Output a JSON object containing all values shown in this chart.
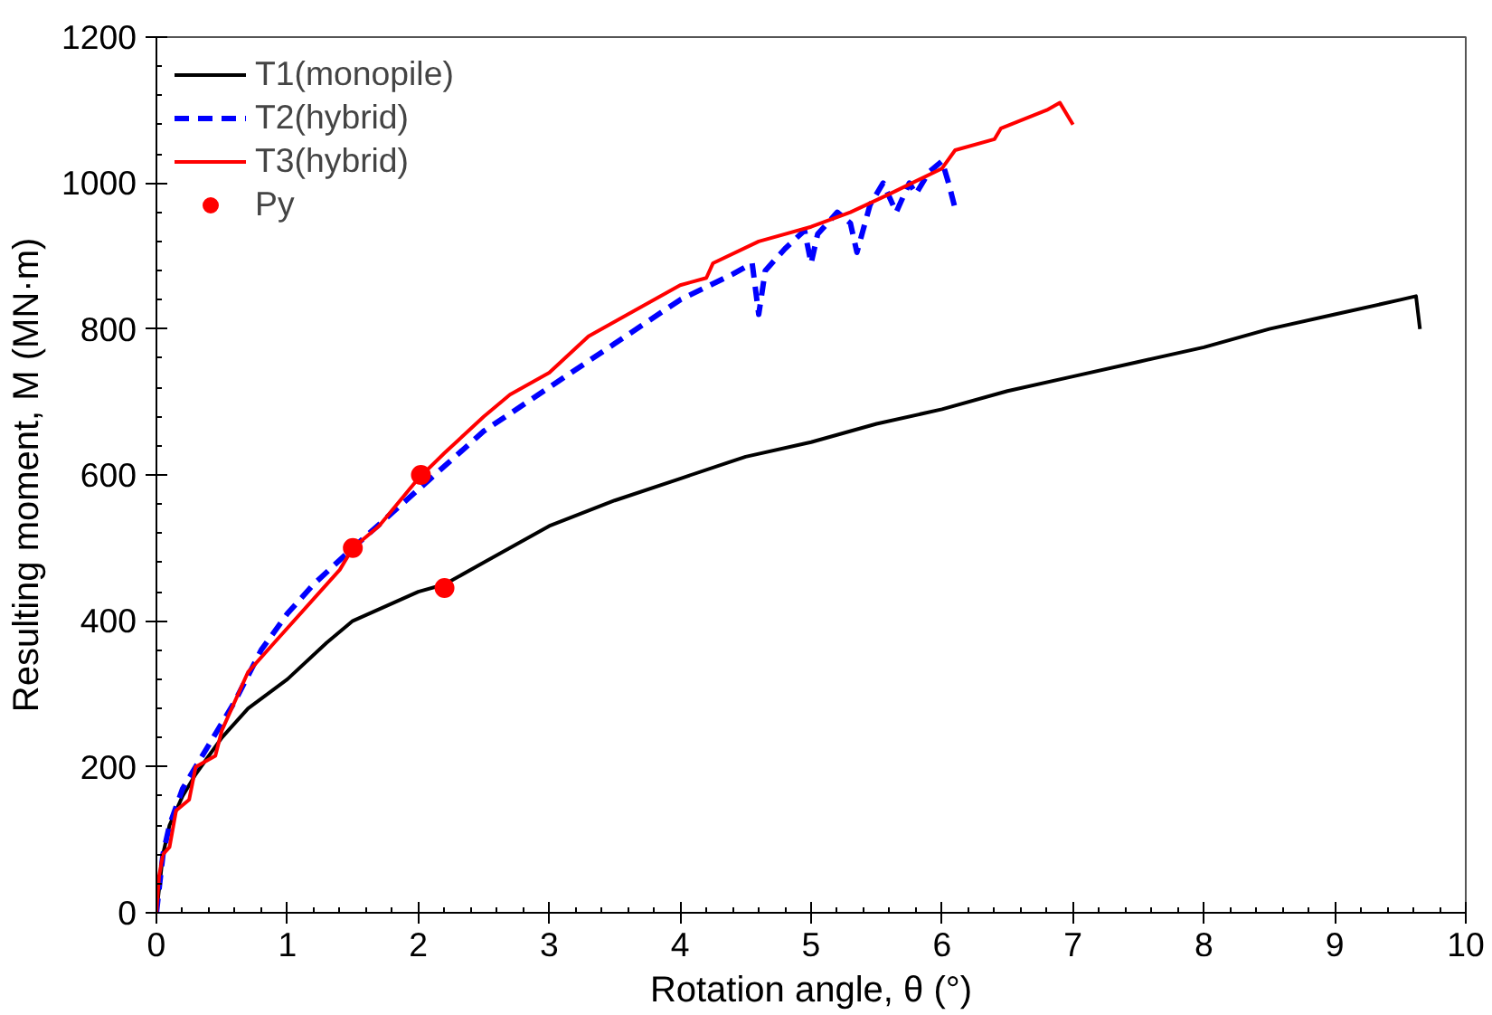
{
  "chart_data": {
    "type": "line",
    "xlabel": "Rotation angle, θ (°)",
    "ylabel": "Resulting moment, M (MN·m)",
    "xlim": [
      0,
      10
    ],
    "ylim": [
      0,
      1200
    ],
    "xticks": [
      0,
      1,
      2,
      3,
      4,
      5,
      6,
      7,
      8,
      9,
      10
    ],
    "yticks": [
      0,
      200,
      400,
      600,
      800,
      1000,
      1200
    ],
    "grid": false,
    "legend": "top left",
    "marker": "none",
    "series": [
      {
        "name": "T1(monopile)",
        "color": "#000000",
        "line_style": "solid",
        "x": [
          0,
          0.05,
          0.1,
          0.2,
          0.3,
          0.5,
          0.7,
          1,
          1.3,
          1.5,
          2,
          2.2,
          2.5,
          3,
          3.5,
          4,
          4.5,
          5,
          5.5,
          6,
          6.5,
          7,
          7.5,
          8,
          8.5,
          9,
          9.5,
          9.62,
          9.65
        ],
        "values": [
          0,
          80,
          120,
          160,
          190,
          240,
          280,
          320,
          370,
          400,
          440,
          450,
          480,
          530,
          565,
          595,
          625,
          645,
          670,
          690,
          715,
          735,
          755,
          775,
          800,
          820,
          840,
          845,
          800
        ]
      },
      {
        "name": "T2(hybrid)",
        "color": "#0000ff",
        "line_style": "dashed",
        "x": [
          0,
          0.05,
          0.1,
          0.2,
          0.4,
          0.6,
          0.8,
          1,
          1.2,
          1.5,
          2,
          2.5,
          3,
          3.5,
          4,
          4.4,
          4.55,
          4.6,
          4.65,
          4.8,
          4.95,
          5.0,
          5.05,
          5.2,
          5.3,
          5.35,
          5.45,
          5.55,
          5.65,
          5.75,
          5.8,
          5.9,
          6.0,
          6.05,
          6.1
        ],
        "values": [
          0,
          80,
          120,
          170,
          230,
          290,
          360,
          410,
          450,
          500,
          580,
          660,
          720,
          780,
          840,
          875,
          890,
          820,
          880,
          910,
          935,
          890,
          930,
          960,
          945,
          905,
          970,
          1000,
          960,
          1000,
          985,
          1015,
          1030,
          1000,
          965
        ]
      },
      {
        "name": "T3(hybrid)",
        "color": "#ff0000",
        "line_style": "solid",
        "x": [
          0,
          0.02,
          0.05,
          0.1,
          0.15,
          0.25,
          0.3,
          0.45,
          0.5,
          0.7,
          0.9,
          1.2,
          1.4,
          1.5,
          1.7,
          2,
          2.2,
          2.5,
          2.7,
          3,
          3.3,
          3.6,
          4,
          4.2,
          4.25,
          4.6,
          5,
          5.3,
          5.6,
          6,
          6.1,
          6.4,
          6.45,
          6.8,
          6.9,
          7.0
        ],
        "values": [
          0,
          50,
          80,
          90,
          140,
          155,
          200,
          215,
          250,
          330,
          370,
          430,
          470,
          500,
          530,
          595,
          630,
          680,
          710,
          740,
          790,
          820,
          860,
          870,
          890,
          920,
          940,
          960,
          985,
          1020,
          1045,
          1060,
          1075,
          1100,
          1110,
          1080
        ]
      },
      {
        "name": "Py",
        "type": "scatter",
        "marker": "circle",
        "color": "#ff0000",
        "x": [
          1.5,
          2.02,
          2.2
        ],
        "values": [
          500,
          600,
          445
        ]
      }
    ]
  }
}
